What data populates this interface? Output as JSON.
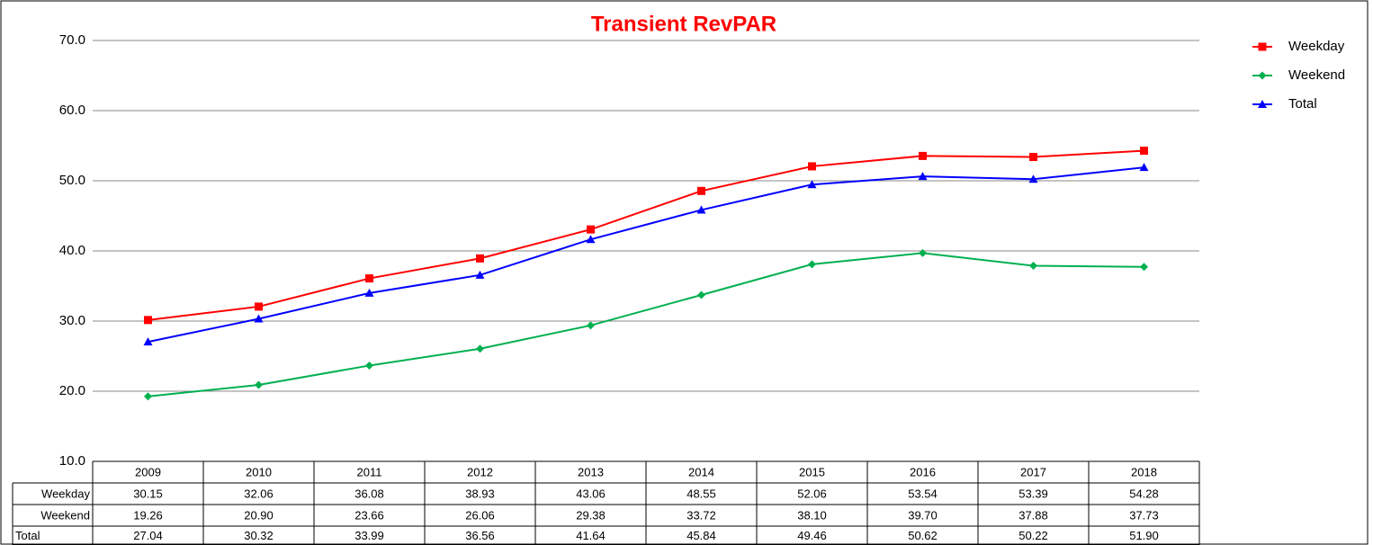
{
  "chart_data": {
    "type": "line",
    "title": "Transient RevPAR",
    "categories": [
      "2009",
      "2010",
      "2011",
      "2012",
      "2013",
      "2014",
      "2015",
      "2016",
      "2017",
      "2018"
    ],
    "series": [
      {
        "name": "Weekday",
        "color": "#ff0000",
        "marker": "square",
        "values": [
          30.15,
          32.06,
          36.08,
          38.93,
          43.06,
          48.55,
          52.06,
          53.54,
          53.39,
          54.28
        ],
        "value_labels": [
          "30.15",
          "32.06",
          "36.08",
          "38.93",
          "43.06",
          "48.55",
          "52.06",
          "53.54",
          "53.39",
          "54.28"
        ]
      },
      {
        "name": "Weekend",
        "color": "#00b050",
        "marker": "diamond",
        "values": [
          19.26,
          20.9,
          23.66,
          26.06,
          29.38,
          33.72,
          38.1,
          39.7,
          37.88,
          37.73
        ],
        "value_labels": [
          "19.26",
          "20.90",
          "23.66",
          "26.06",
          "29.38",
          "33.72",
          "38.10",
          "39.70",
          "37.88",
          "37.73"
        ]
      },
      {
        "name": "Total",
        "color": "#0000ff",
        "marker": "triangle",
        "values": [
          27.04,
          30.32,
          33.99,
          36.56,
          41.64,
          45.84,
          49.46,
          50.62,
          50.22,
          51.9
        ],
        "value_labels": [
          "27.04",
          "30.32",
          "33.99",
          "36.56",
          "41.64",
          "45.84",
          "49.46",
          "50.62",
          "50.22",
          "51.90"
        ]
      }
    ],
    "ylim": [
      10,
      70
    ],
    "yticks": [
      {
        "value": 10,
        "label": "10.0"
      },
      {
        "value": 20,
        "label": "20.0"
      },
      {
        "value": 30,
        "label": "30.0"
      },
      {
        "value": 40,
        "label": "40.0"
      },
      {
        "value": 50,
        "label": "50.0"
      },
      {
        "value": 60,
        "label": "60.0"
      },
      {
        "value": 70,
        "label": "70.0"
      }
    ],
    "grid": true,
    "legend": "top-right"
  }
}
